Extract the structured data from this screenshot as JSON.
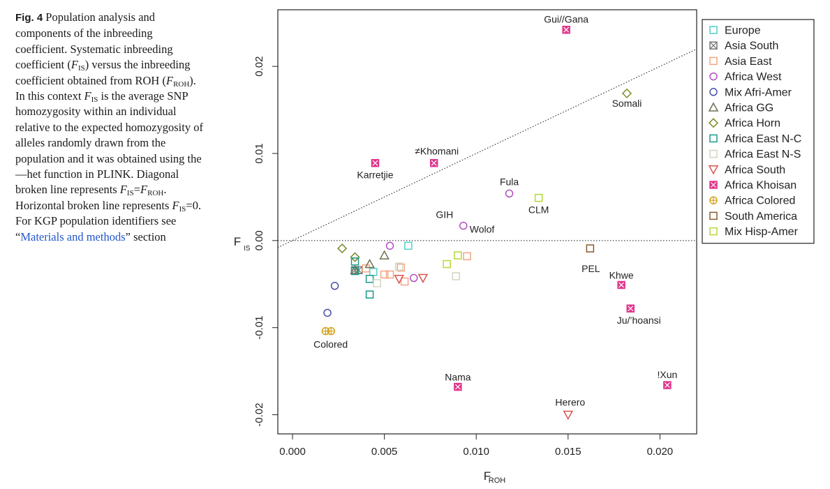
{
  "caption": {
    "fig_label": "Fig. 4",
    "t1": " Population analysis and components of the inbreeding coefficient. Systematic inbreeding coefficient (",
    "f_is_sym": "F",
    "f_is_sub": "IS",
    "t2": ") versus the inbreeding coefficient obtained from ROH (",
    "f_roh_sym": "F",
    "f_roh_sub": "ROH",
    "t3": "). In this context ",
    "t4": " is the average SNP homozygosity within an individual relative to the expected homozygosity of alleles randomly drawn from the population and it was obtained using the—het function in PLINK. Diagonal broken line represents ",
    "eq": "=",
    "t5": ". Horizontal broken line represents ",
    "t6": "=0. For KGP population identifiers see “",
    "link": "Materials and methods",
    "t7": "” section"
  },
  "chart_data": {
    "type": "scatter",
    "xlabel": "F",
    "xlabel_sub": "ROH",
    "ylabel": "F",
    "ylabel_sub": "IS",
    "xlim": [
      -0.0008,
      0.022
    ],
    "ylim": [
      -0.0222,
      0.0265
    ],
    "xticks": [
      0.0,
      0.005,
      0.01,
      0.015,
      0.02
    ],
    "xtick_labels": [
      "0.000",
      "0.005",
      "0.010",
      "0.015",
      "0.020"
    ],
    "yticks": [
      -0.02,
      -0.01,
      0.0,
      0.01,
      0.02
    ],
    "ytick_labels": [
      "-0.02",
      "-0.01",
      "0.00",
      "0.01",
      "0.02"
    ],
    "reference_lines": [
      {
        "name": "diagonal",
        "x": [
          -0.0008,
          0.022
        ],
        "y": [
          -0.0008,
          0.022
        ],
        "style": "dotted"
      },
      {
        "name": "horizontal",
        "y": 0.0,
        "style": "dotted"
      }
    ],
    "legend_position": "top-right",
    "series": [
      {
        "name": "Europe",
        "marker": "square",
        "color": "#4fd1c5",
        "x": [
          0.0063,
          0.0044
        ],
        "y": [
          -0.0006,
          -0.0036
        ]
      },
      {
        "name": "Asia South",
        "marker": "square-x",
        "color": "#777777",
        "x": [
          0.0034,
          0.0036
        ],
        "y": [
          -0.0034,
          -0.0034
        ]
      },
      {
        "name": "Asia East",
        "marker": "square",
        "color": "#f4a582",
        "x": [
          0.004,
          0.005,
          0.0053,
          0.0059,
          0.0061,
          0.0095
        ],
        "y": [
          -0.0032,
          -0.0039,
          -0.0039,
          -0.0031,
          -0.0047,
          -0.0018
        ]
      },
      {
        "name": "Africa West",
        "marker": "circle",
        "color": "#b04fc0",
        "x": [
          0.0053,
          0.0066,
          0.0118,
          0.0093
        ],
        "y": [
          -0.0006,
          -0.0043,
          0.0054,
          0.0017
        ]
      },
      {
        "name": "Mix Afri-Amer",
        "marker": "circle",
        "color": "#4b4fa8",
        "x": [
          0.0023,
          0.0019
        ],
        "y": [
          -0.0052,
          -0.0083
        ]
      },
      {
        "name": "Africa GG",
        "marker": "triangle",
        "color": "#6e6e52",
        "x": [
          0.0034,
          0.0042,
          0.005
        ],
        "y": [
          -0.0034,
          -0.0027,
          -0.0017
        ]
      },
      {
        "name": "Africa Horn",
        "marker": "diamond",
        "color": "#7a8a2a",
        "x": [
          0.0027,
          0.0034,
          0.0182
        ],
        "y": [
          -0.0009,
          -0.0019,
          0.0169
        ]
      },
      {
        "name": "Africa East N-C",
        "marker": "square",
        "color": "#1a9a8a",
        "x": [
          0.0034,
          0.0034,
          0.0042,
          0.0042
        ],
        "y": [
          -0.0024,
          -0.0035,
          -0.0044,
          -0.0062
        ]
      },
      {
        "name": "Africa East N-S",
        "marker": "square",
        "color": "#d4d4c0",
        "x": [
          0.0058,
          0.0089,
          0.0046
        ],
        "y": [
          -0.003,
          -0.0041,
          -0.0049
        ]
      },
      {
        "name": "Africa South",
        "marker": "triangle-down",
        "color": "#d9534f",
        "x": [
          0.0058,
          0.0071,
          0.015
        ],
        "y": [
          -0.0044,
          -0.0043,
          -0.02
        ]
      },
      {
        "name": "Africa Khoisan",
        "marker": "square-x-filled",
        "color": "#e0368c",
        "x": [
          0.0149,
          0.0045,
          0.0077,
          0.0179,
          0.0184,
          0.009,
          0.0204
        ],
        "y": [
          0.0242,
          0.0089,
          0.0089,
          -0.0051,
          -0.0078,
          -0.0168,
          -0.0166
        ]
      },
      {
        "name": "Africa Colored",
        "marker": "circle-plus",
        "color": "#d4a017",
        "x": [
          0.0018,
          0.0021
        ],
        "y": [
          -0.0104,
          -0.0104
        ]
      },
      {
        "name": "South America",
        "marker": "square",
        "color": "#8b5a2b",
        "x": [
          0.0162
        ],
        "y": [
          -0.0009
        ]
      },
      {
        "name": "Mix Hisp-Amer",
        "marker": "square",
        "color": "#b5d933",
        "x": [
          0.009,
          0.0084,
          0.0134
        ],
        "y": [
          -0.0017,
          -0.0027,
          0.0049
        ]
      }
    ],
    "annotations": [
      {
        "text": "Gui//Gana",
        "x": 0.0149,
        "y": 0.0242
      },
      {
        "text": "Somali",
        "x": 0.0182,
        "y": 0.0169
      },
      {
        "text": "≠Khomani",
        "x": 0.0077,
        "y": 0.0089
      },
      {
        "text": "Karretjie",
        "x": 0.0045,
        "y": 0.0089
      },
      {
        "text": "Fula",
        "x": 0.0118,
        "y": 0.0054
      },
      {
        "text": "CLM",
        "x": 0.0134,
        "y": 0.0049
      },
      {
        "text": "GIH",
        "x": 0.0093,
        "y": 0.0017
      },
      {
        "text": "Wolof",
        "x": 0.0093,
        "y": 0.0017
      },
      {
        "text": "PEL",
        "x": 0.0162,
        "y": -0.0009
      },
      {
        "text": "Khwe",
        "x": 0.0179,
        "y": -0.0051
      },
      {
        "text": "Ju/’hoansi",
        "x": 0.0184,
        "y": -0.0078
      },
      {
        "text": "Colored",
        "x": 0.002,
        "y": -0.0104
      },
      {
        "text": "Nama",
        "x": 0.009,
        "y": -0.0168
      },
      {
        "text": "!Xun",
        "x": 0.0204,
        "y": -0.0166
      },
      {
        "text": "Herero",
        "x": 0.015,
        "y": -0.02
      }
    ]
  }
}
